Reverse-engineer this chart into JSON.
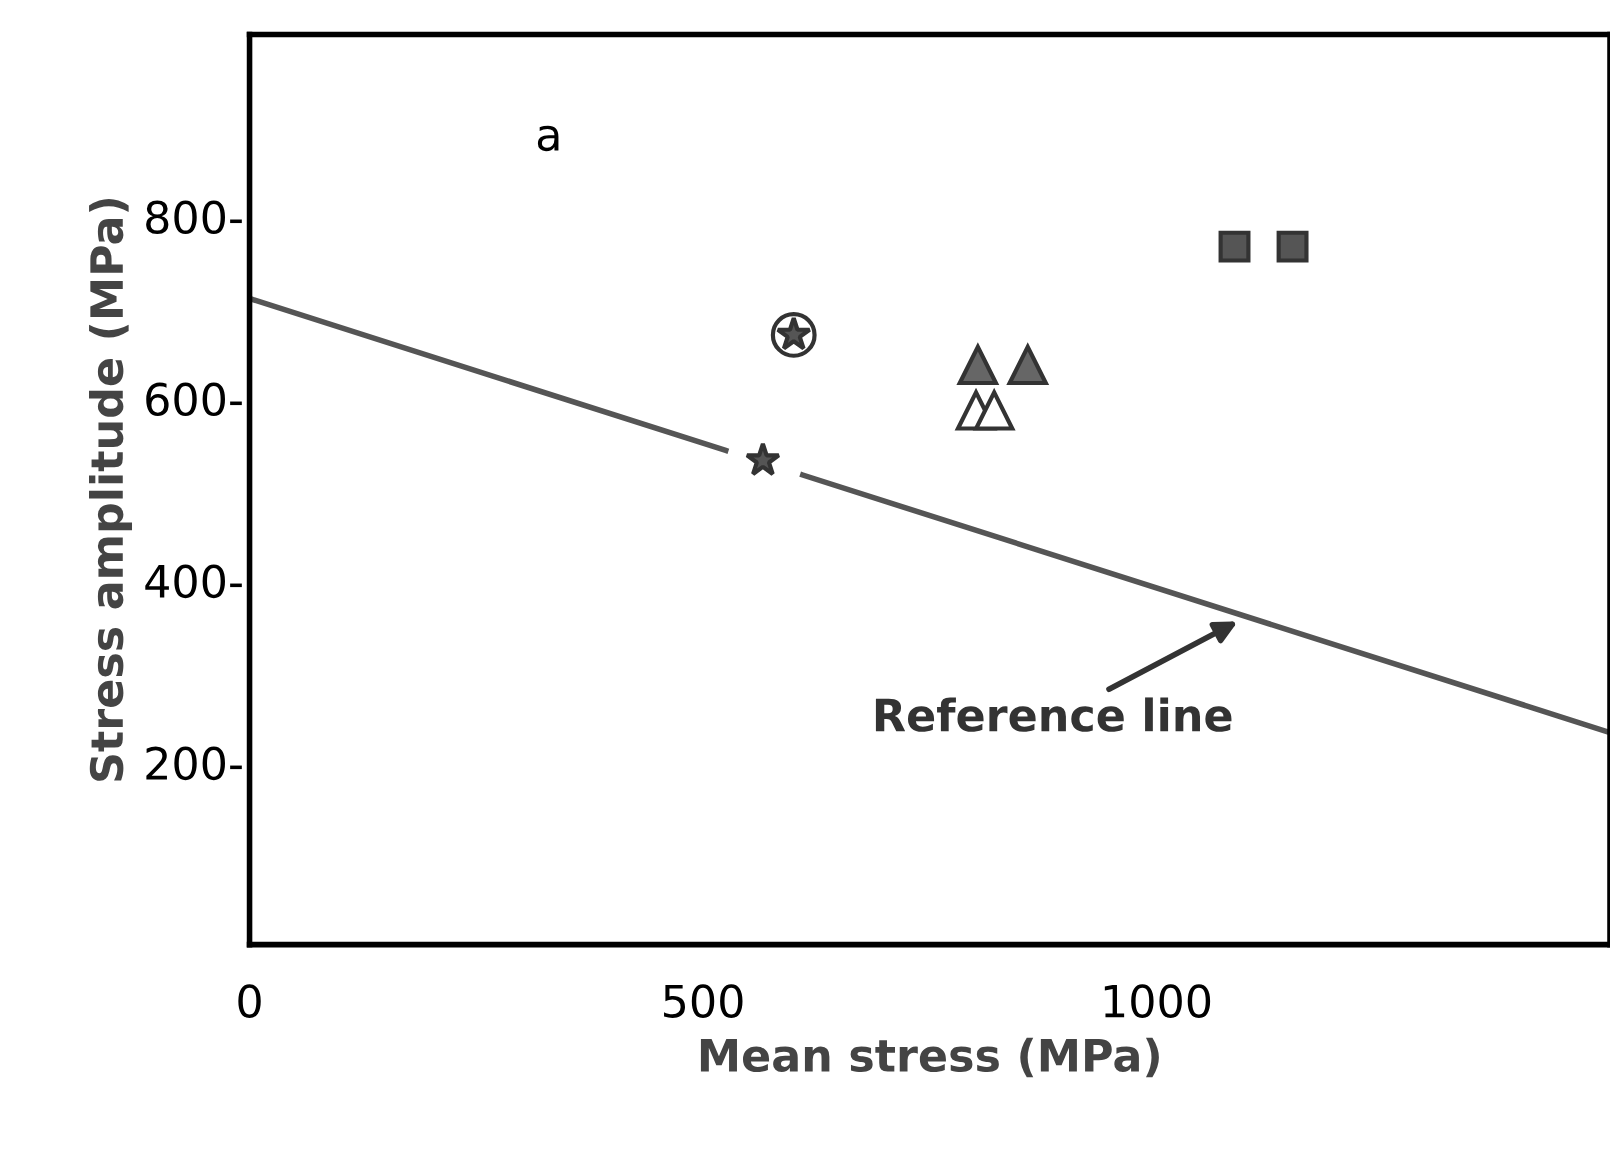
{
  "chart_data": {
    "type": "scatter",
    "xlabel": "Mean stress (MPa)",
    "ylabel": "Stress amplitude (MPa)",
    "xlim": [
      0,
      1500
    ],
    "ylim": [
      0,
      1000
    ],
    "xticks": [
      0,
      500,
      1000
    ],
    "yticks": [
      {
        "value": 200,
        "label": "200-"
      },
      {
        "value": 400,
        "label": "400-"
      },
      {
        "value": 600,
        "label": "600-"
      },
      {
        "value": 800,
        "label": "800-"
      }
    ],
    "grid": false,
    "legend": false,
    "series": [
      {
        "type": "line",
        "x": [
          0,
          525,
          567,
          610,
          1500
        ],
        "values": [
          710,
          543,
          null,
          516,
          233
        ],
        "color": "#555555",
        "marker": "none",
        "line_style": "solid"
      },
      {
        "x": [
          600
        ],
        "values": [
          670
        ],
        "color": "#ffffff",
        "marker": "circle"
      },
      {
        "x": [
          600
        ],
        "values": [
          670
        ],
        "color": "#555555",
        "marker": "star"
      },
      {
        "x": [
          803,
          858
        ],
        "values": [
          637,
          637
        ],
        "color": "#666666",
        "marker": "triangle"
      },
      {
        "x": [
          801,
          821
        ],
        "values": [
          587,
          587
        ],
        "color": "#ffffff",
        "marker": "triangle"
      },
      {
        "x": [
          566
        ],
        "values": [
          532
        ],
        "color": "#555555",
        "marker": "star"
      },
      {
        "x": [
          1086,
          1150
        ],
        "values": [
          767,
          767
        ],
        "color": "#555555",
        "marker": "square"
      }
    ],
    "annotations": [
      "a",
      {
        "text": "Reference line",
        "x": 1095,
        "y": 358
      }
    ]
  }
}
